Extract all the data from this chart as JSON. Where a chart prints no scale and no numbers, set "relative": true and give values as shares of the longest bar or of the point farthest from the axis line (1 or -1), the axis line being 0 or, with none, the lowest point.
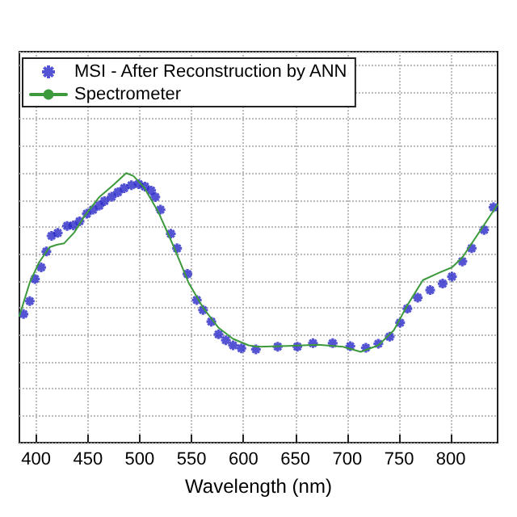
{
  "chart_data": {
    "type": "line",
    "xlabel": "Wavelength (nm)",
    "relative": true,
    "xlim": [
      384,
      845
    ],
    "xticks": [
      400,
      450,
      500,
      550,
      600,
      650,
      700,
      750,
      800
    ],
    "grid": true,
    "legend": "top left",
    "series": [
      {
        "name": "MSI - After Reconstruction by ANN",
        "type": "scatter",
        "marker": "cross",
        "color": "#2828c8",
        "x": [
          388,
          394,
          399,
          405,
          410,
          415,
          421,
          430,
          436,
          442,
          449,
          455,
          461,
          466,
          473,
          479,
          485,
          492,
          499,
          505,
          511,
          515,
          520,
          530,
          536,
          546,
          555,
          561,
          569,
          576,
          583,
          590,
          598,
          612,
          633,
          652,
          667,
          686,
          703,
          718,
          730,
          741,
          751,
          758,
          768,
          780,
          792,
          801,
          811,
          820,
          832,
          841
        ],
        "values": [
          0.477,
          0.525,
          0.607,
          0.65,
          0.709,
          0.767,
          0.778,
          0.804,
          0.806,
          0.821,
          0.849,
          0.864,
          0.879,
          0.896,
          0.912,
          0.929,
          0.944,
          0.955,
          0.959,
          0.95,
          0.935,
          0.911,
          0.864,
          0.775,
          0.721,
          0.626,
          0.529,
          0.492,
          0.449,
          0.402,
          0.38,
          0.361,
          0.35,
          0.346,
          0.356,
          0.356,
          0.369,
          0.369,
          0.358,
          0.352,
          0.367,
          0.393,
          0.445,
          0.497,
          0.538,
          0.566,
          0.59,
          0.616,
          0.672,
          0.721,
          0.789,
          0.873
        ]
      },
      {
        "name": "Spectrometer",
        "marker": "none",
        "line_style": "solid",
        "color": "#3c9a3c",
        "x": [
          384,
          394,
          403,
          413,
          420,
          427,
          437,
          446,
          461,
          475,
          487,
          494,
          504,
          518,
          533,
          547,
          561,
          576,
          590,
          605,
          614,
          643,
          672,
          696,
          713,
          730,
          745,
          758,
          773,
          789,
          801,
          811,
          845
        ],
        "values": [
          0.47,
          0.594,
          0.669,
          0.725,
          0.734,
          0.739,
          0.78,
          0.836,
          0.911,
          0.957,
          1,
          0.989,
          0.948,
          0.855,
          0.725,
          0.594,
          0.501,
          0.426,
          0.385,
          0.361,
          0.356,
          0.359,
          0.363,
          0.356,
          0.337,
          0.361,
          0.417,
          0.51,
          0.603,
          0.631,
          0.65,
          0.687,
          0.883
        ]
      }
    ]
  }
}
